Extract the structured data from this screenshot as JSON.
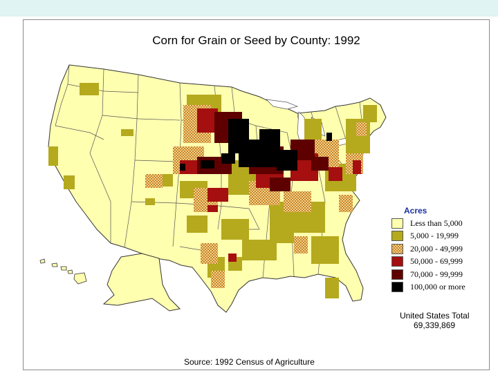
{
  "title": "Corn for Grain or Seed by County:  1992",
  "legend": {
    "title": "Acres",
    "items": [
      {
        "label": "Less than 5,000",
        "color": "#ffffb0"
      },
      {
        "label": "5,000 - 19,999",
        "color": "#b5a91e"
      },
      {
        "label": "20,000 - 49,999",
        "color": "#d6a050"
      },
      {
        "label": "50,000 - 69,999",
        "color": "#a50f0f"
      },
      {
        "label": "70,000 -  99,999",
        "color": "#5e0000"
      },
      {
        "label": "100,000 or more",
        "color": "#000000"
      }
    ]
  },
  "total": {
    "label": "United States Total",
    "value": "69,339,869"
  },
  "source": "Source:  1992 Census of Agriculture"
}
